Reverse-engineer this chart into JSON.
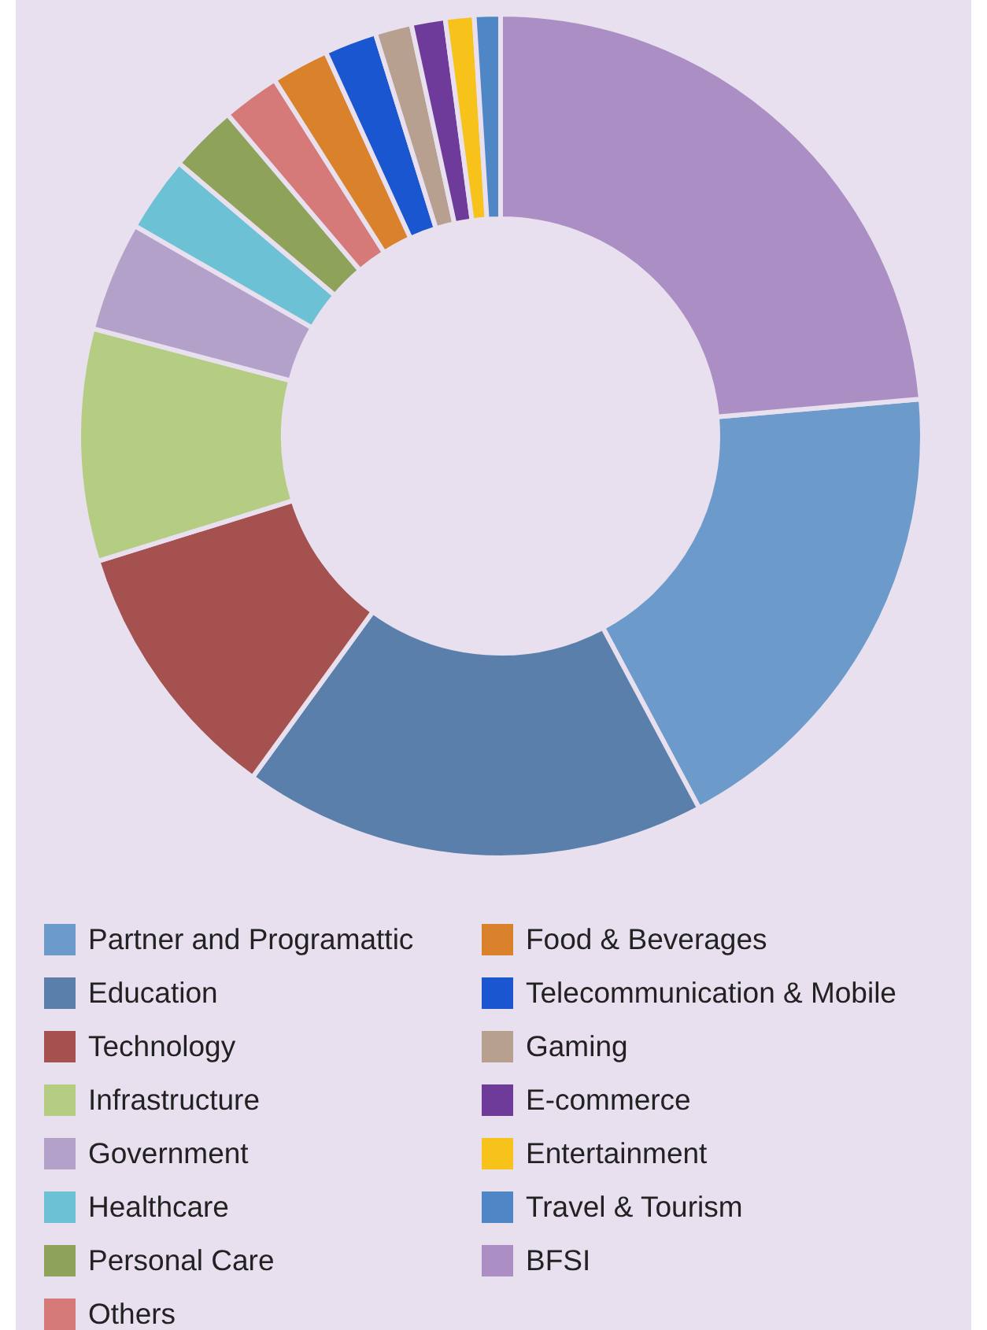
{
  "chart_data": {
    "type": "donut",
    "categories": [
      "Partner and Programattic",
      "Education",
      "Technology",
      "Infrastructure",
      "Government",
      "Healthcare",
      "Personal Care",
      "Others",
      "Food & Beverages",
      "Telecommunication & Mobile",
      "Gaming",
      "E-commerce",
      "Entertainment",
      "Travel & Tourism",
      "BFSI"
    ],
    "values": [
      18.6,
      17.8,
      10.2,
      8.9,
      4.2,
      2.9,
      2.6,
      2.2,
      2.2,
      2.0,
      1.4,
      1.3,
      1.1,
      1.0,
      23.6
    ],
    "colors": [
      "#6c9bcb",
      "#5a7fab",
      "#a4514f",
      "#b5cd82",
      "#b3a1c9",
      "#6cc2d4",
      "#8ea25a",
      "#d67a79",
      "#d9822b",
      "#1a56d0",
      "#b8a090",
      "#6e3b9a",
      "#f7c21a",
      "#4f86c6",
      "#ab8fc4"
    ],
    "legend": "bottom"
  }
}
